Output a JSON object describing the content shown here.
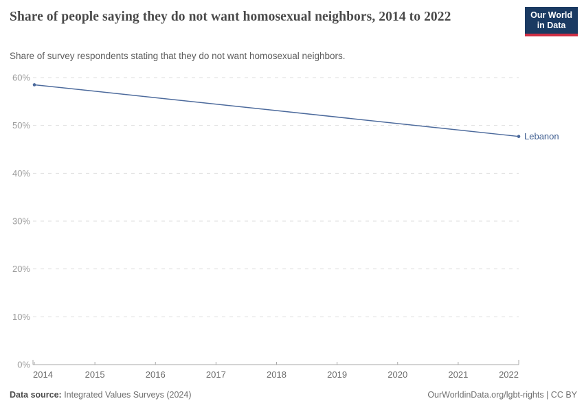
{
  "header": {
    "title": "Share of people saying they do not want homosexual neighbors, 2014 to 2022",
    "subtitle": "Share of survey respondents stating that they do not want homosexual neighbors."
  },
  "logo": {
    "line1": "Our World",
    "line2": "in Data",
    "bg_color": "#1a3a62",
    "accent_color": "#cf2e44"
  },
  "footer": {
    "datasource_label": "Data source:",
    "datasource_value": " Integrated Values Surveys (2024)",
    "credit": "OurWorldinData.org/lgbt-rights | CC BY"
  },
  "chart_data": {
    "type": "line",
    "title": "Share of people saying they do not want homosexual neighbors, 2014 to 2022",
    "xlabel": "",
    "ylabel": "",
    "xlim": [
      2014,
      2022
    ],
    "ylim": [
      0,
      60
    ],
    "x_ticks": [
      2014,
      2015,
      2016,
      2017,
      2018,
      2019,
      2020,
      2021,
      2022
    ],
    "y_ticks": [
      0,
      10,
      20,
      30,
      40,
      50,
      60
    ],
    "y_tick_suffix": "%",
    "grid": "horizontal-dashed",
    "legend_position": "end-of-line-label",
    "series": [
      {
        "name": "Lebanon",
        "color": "#4c6a9c",
        "label_color": "#3d5c8f",
        "points": [
          {
            "x": 2014,
            "y": 58.5
          },
          {
            "x": 2022,
            "y": 47.7
          }
        ]
      }
    ],
    "colors": {
      "gridline": "#dedede",
      "axis_line": "#a8a8a8",
      "y_tick_label": "#9c9c9c",
      "x_tick_label": "#6b6b6b"
    }
  }
}
